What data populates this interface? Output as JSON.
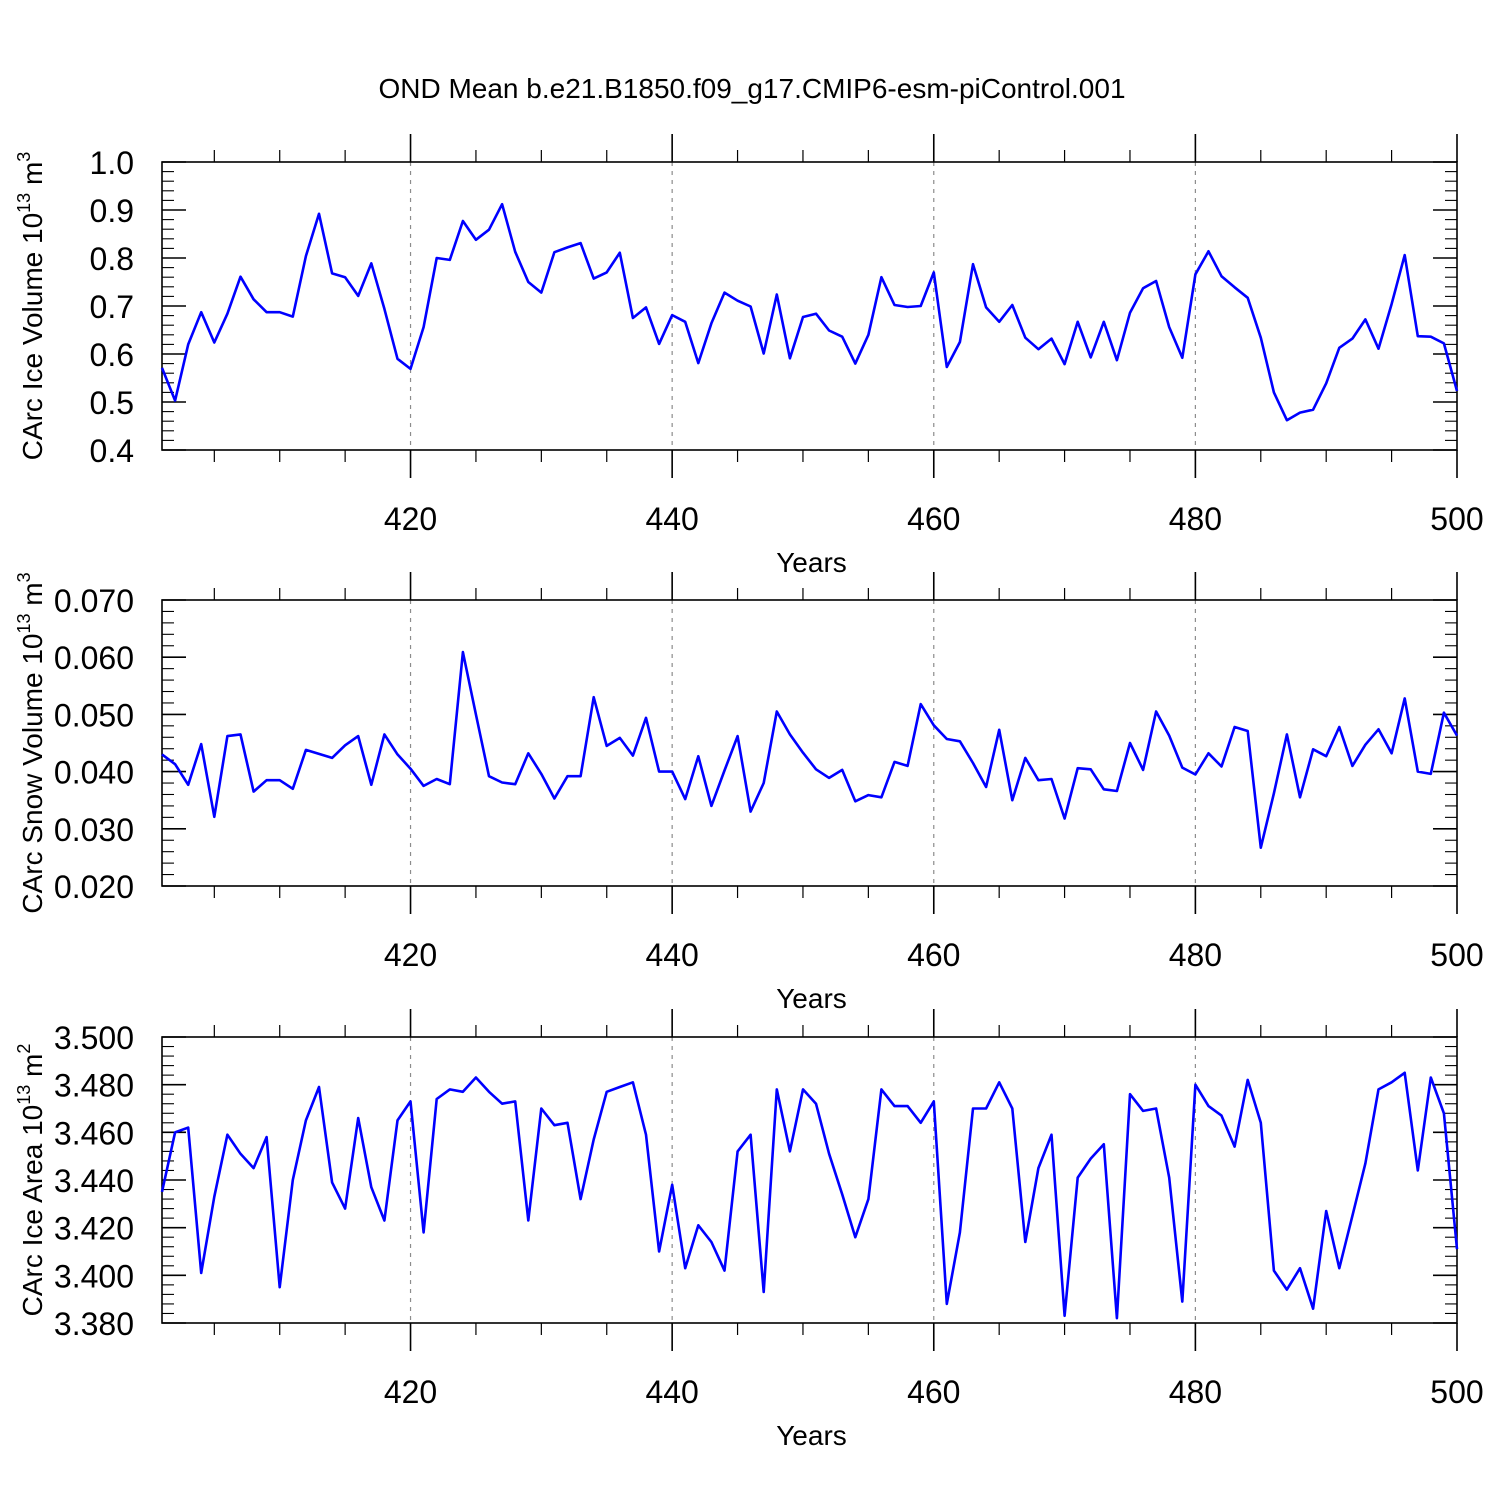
{
  "figure_title": "OND Mean b.e21.B1850.f09_g17.CMIP6-esm-piControl.001",
  "colors": {
    "line": "#0000ff",
    "axis": "#000000",
    "grid": "#8c8c8c"
  },
  "chart_data": [
    {
      "type": "line",
      "title": "OND Mean b.e21.B1850.f09_g17.CMIP6-esm-piControl.001",
      "xlabel": "Years",
      "ylabel_parts": [
        "CArc Ice Volume 10",
        "13",
        " m",
        "3"
      ],
      "xlim": [
        401,
        500
      ],
      "ylim": [
        0.4,
        1.0
      ],
      "x_ticks": [
        420,
        440,
        460,
        480,
        500
      ],
      "x_tick_labels": [
        "420",
        "440",
        "460",
        "480",
        "500"
      ],
      "y_ticks": [
        0.4,
        0.5,
        0.6,
        0.7,
        0.8,
        0.9,
        1.0
      ],
      "y_tick_labels": [
        "0.4",
        "0.5",
        "0.6",
        "0.7",
        "0.8",
        "0.9",
        "1.0"
      ],
      "y_minor_step": 0.02,
      "grid_x": true,
      "x_start": 401,
      "values": [
        0.571,
        0.503,
        0.62,
        0.687,
        0.624,
        0.684,
        0.761,
        0.714,
        0.687,
        0.687,
        0.678,
        0.804,
        0.892,
        0.768,
        0.76,
        0.721,
        0.789,
        0.694,
        0.59,
        0.569,
        0.656,
        0.8,
        0.796,
        0.877,
        0.838,
        0.859,
        0.912,
        0.813,
        0.75,
        0.728,
        0.812,
        0.822,
        0.831,
        0.757,
        0.77,
        0.811,
        0.675,
        0.697,
        0.621,
        0.681,
        0.667,
        0.581,
        0.664,
        0.728,
        0.711,
        0.699,
        0.601,
        0.724,
        0.591,
        0.677,
        0.684,
        0.649,
        0.636,
        0.58,
        0.64,
        0.76,
        0.702,
        0.698,
        0.7,
        0.77,
        0.573,
        0.625,
        0.787,
        0.697,
        0.667,
        0.702,
        0.634,
        0.61,
        0.632,
        0.579,
        0.667,
        0.593,
        0.667,
        0.587,
        0.686,
        0.737,
        0.752,
        0.656,
        0.592,
        0.766,
        0.814,
        0.762,
        0.739,
        0.717,
        0.634,
        0.52,
        0.462,
        0.478,
        0.484,
        0.539,
        0.613,
        0.632,
        0.672,
        0.611,
        0.704,
        0.806,
        0.637,
        0.636,
        0.622,
        0.523
      ]
    },
    {
      "type": "line",
      "xlabel": "Years",
      "ylabel_parts": [
        "CArc Snow Volume 10",
        "13",
        " m",
        "3"
      ],
      "xlim": [
        401,
        500
      ],
      "ylim": [
        0.02,
        0.07
      ],
      "x_ticks": [
        420,
        440,
        460,
        480,
        500
      ],
      "x_tick_labels": [
        "420",
        "440",
        "460",
        "480",
        "500"
      ],
      "y_ticks": [
        0.02,
        0.03,
        0.04,
        0.05,
        0.06,
        0.07
      ],
      "y_tick_labels": [
        "0.020",
        "0.030",
        "0.040",
        "0.050",
        "0.060",
        "0.070"
      ],
      "y_minor_step": 0.002,
      "grid_x": true,
      "x_start": 401,
      "values": [
        0.043,
        0.0413,
        0.0377,
        0.0448,
        0.0321,
        0.0462,
        0.0465,
        0.0365,
        0.0385,
        0.0385,
        0.037,
        0.0438,
        0.0431,
        0.0424,
        0.0446,
        0.0462,
        0.0377,
        0.0465,
        0.043,
        0.0405,
        0.0375,
        0.0387,
        0.0378,
        0.0609,
        0.05,
        0.0392,
        0.0381,
        0.0378,
        0.0432,
        0.0396,
        0.0353,
        0.0392,
        0.0392,
        0.053,
        0.0445,
        0.0459,
        0.0428,
        0.0494,
        0.04,
        0.04,
        0.0352,
        0.0427,
        0.034,
        0.0402,
        0.0462,
        0.033,
        0.038,
        0.0505,
        0.0465,
        0.0433,
        0.0404,
        0.0389,
        0.0403,
        0.0348,
        0.0359,
        0.0355,
        0.0417,
        0.041,
        0.0518,
        0.0481,
        0.0457,
        0.0453,
        0.0415,
        0.0373,
        0.0473,
        0.035,
        0.0424,
        0.0385,
        0.0387,
        0.0318,
        0.0406,
        0.0404,
        0.0369,
        0.0366,
        0.045,
        0.0403,
        0.0505,
        0.0463,
        0.0407,
        0.0395,
        0.0432,
        0.0409,
        0.0478,
        0.0471,
        0.0267,
        0.0362,
        0.0465,
        0.0355,
        0.0439,
        0.0427,
        0.0478,
        0.041,
        0.0447,
        0.0474,
        0.0432,
        0.0528,
        0.04,
        0.0396,
        0.0503,
        0.0463
      ]
    },
    {
      "type": "line",
      "xlabel": "Years",
      "ylabel_parts": [
        "CArc Ice Area 10",
        "13",
        " m",
        "2"
      ],
      "xlim": [
        401,
        500
      ],
      "ylim": [
        3.38,
        3.5
      ],
      "x_ticks": [
        420,
        440,
        460,
        480,
        500
      ],
      "x_tick_labels": [
        "420",
        "440",
        "460",
        "480",
        "500"
      ],
      "y_ticks": [
        3.38,
        3.4,
        3.42,
        3.44,
        3.46,
        3.48,
        3.5
      ],
      "y_tick_labels": [
        "3.380",
        "3.400",
        "3.420",
        "3.440",
        "3.460",
        "3.480",
        "3.500"
      ],
      "y_minor_step": 0.004,
      "grid_x": true,
      "x_start": 401,
      "values": [
        3.435,
        3.46,
        3.462,
        3.401,
        3.433,
        3.459,
        3.451,
        3.445,
        3.458,
        3.395,
        3.44,
        3.465,
        3.479,
        3.439,
        3.428,
        3.466,
        3.437,
        3.423,
        3.465,
        3.473,
        3.418,
        3.474,
        3.478,
        3.477,
        3.483,
        3.477,
        3.472,
        3.473,
        3.423,
        3.47,
        3.463,
        3.464,
        3.432,
        3.457,
        3.477,
        3.479,
        3.481,
        3.459,
        3.41,
        3.438,
        3.403,
        3.421,
        3.414,
        3.402,
        3.452,
        3.459,
        3.393,
        3.478,
        3.452,
        3.478,
        3.472,
        3.451,
        3.434,
        3.416,
        3.432,
        3.478,
        3.471,
        3.471,
        3.464,
        3.473,
        3.388,
        3.418,
        3.47,
        3.47,
        3.481,
        3.47,
        3.414,
        3.445,
        3.459,
        3.383,
        3.441,
        3.449,
        3.455,
        3.382,
        3.476,
        3.469,
        3.47,
        3.441,
        3.389,
        3.48,
        3.471,
        3.467,
        3.454,
        3.482,
        3.464,
        3.402,
        3.394,
        3.403,
        3.386,
        3.427,
        3.403,
        3.425,
        3.447,
        3.478,
        3.481,
        3.485,
        3.444,
        3.483,
        3.468,
        3.411
      ]
    }
  ]
}
